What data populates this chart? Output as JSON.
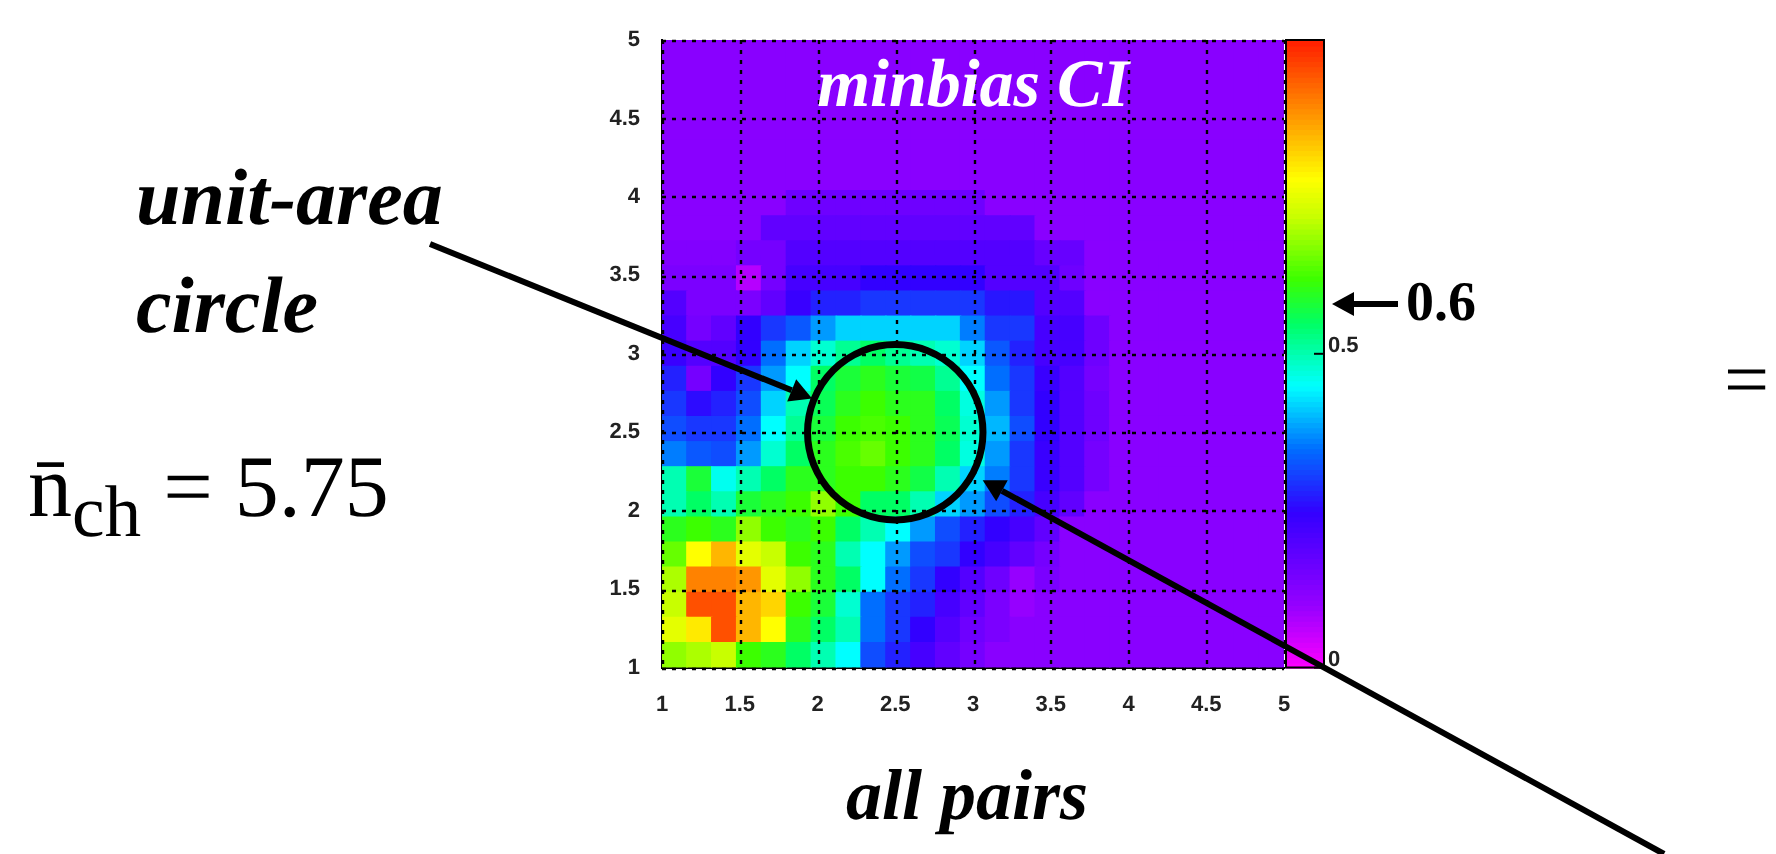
{
  "chart_data": {
    "type": "heatmap",
    "title": "minbias CI",
    "xlabel": "all pairs",
    "annotations": [
      "unit-area circle",
      "0.6",
      "n̄$_{ch}$ = 5.75",
      "="
    ],
    "xlim": [
      1,
      5
    ],
    "ylim": [
      1,
      5
    ],
    "xticks": [
      1,
      1.5,
      2,
      2.5,
      3,
      3.5,
      4,
      4.5,
      5
    ],
    "yticks": [
      1,
      1.5,
      2,
      2.5,
      3,
      3.5,
      4,
      4.5,
      5
    ],
    "clim": [
      0,
      1
    ],
    "cticks": [
      0,
      0.5
    ],
    "grid": true,
    "cells": [
      [
        0.12,
        0.12,
        0.12,
        0.12,
        0.12,
        0.12,
        0.12,
        0.12,
        0.12,
        0.12,
        0.12,
        0.12,
        0.12,
        0.12,
        0.12,
        0.12,
        0.12,
        0.12,
        0.12,
        0.12,
        0.12,
        0.12,
        0.12,
        0.12,
        0.12
      ],
      [
        0.12,
        0.12,
        0.12,
        0.12,
        0.12,
        0.12,
        0.12,
        0.12,
        0.12,
        0.12,
        0.12,
        0.12,
        0.12,
        0.12,
        0.12,
        0.12,
        0.12,
        0.12,
        0.12,
        0.12,
        0.12,
        0.12,
        0.12,
        0.12,
        0.12
      ],
      [
        0.12,
        0.12,
        0.12,
        0.12,
        0.12,
        0.12,
        0.12,
        0.12,
        0.12,
        0.12,
        0.12,
        0.12,
        0.12,
        0.12,
        0.12,
        0.12,
        0.12,
        0.12,
        0.12,
        0.12,
        0.12,
        0.12,
        0.12,
        0.12,
        0.12
      ],
      [
        0.12,
        0.12,
        0.12,
        0.12,
        0.12,
        0.12,
        0.12,
        0.12,
        0.12,
        0.12,
        0.12,
        0.12,
        0.12,
        0.12,
        0.12,
        0.12,
        0.12,
        0.12,
        0.12,
        0.12,
        0.12,
        0.12,
        0.12,
        0.12,
        0.12
      ],
      [
        0.12,
        0.12,
        0.12,
        0.12,
        0.12,
        0.12,
        0.12,
        0.12,
        0.12,
        0.12,
        0.12,
        0.12,
        0.12,
        0.12,
        0.12,
        0.12,
        0.12,
        0.12,
        0.12,
        0.12,
        0.12,
        0.12,
        0.12,
        0.12,
        0.12
      ],
      [
        0.12,
        0.12,
        0.12,
        0.12,
        0.12,
        0.12,
        0.12,
        0.12,
        0.12,
        0.12,
        0.12,
        0.12,
        0.12,
        0.12,
        0.12,
        0.12,
        0.12,
        0.12,
        0.12,
        0.12,
        0.12,
        0.12,
        0.12,
        0.12,
        0.12
      ],
      [
        0.12,
        0.12,
        0.12,
        0.12,
        0.12,
        0.16,
        0.16,
        0.16,
        0.16,
        0.16,
        0.16,
        0.16,
        0.16,
        0.12,
        0.12,
        0.12,
        0.12,
        0.12,
        0.12,
        0.12,
        0.12,
        0.12,
        0.12,
        0.12,
        0.12
      ],
      [
        0.12,
        0.12,
        0.12,
        0.12,
        0.18,
        0.18,
        0.18,
        0.18,
        0.18,
        0.18,
        0.18,
        0.18,
        0.18,
        0.18,
        0.18,
        0.12,
        0.12,
        0.12,
        0.12,
        0.12,
        0.12,
        0.12,
        0.12,
        0.12,
        0.12
      ],
      [
        0.13,
        0.13,
        0.13,
        0.15,
        0.15,
        0.2,
        0.2,
        0.2,
        0.2,
        0.2,
        0.2,
        0.2,
        0.2,
        0.2,
        0.2,
        0.17,
        0.17,
        0.12,
        0.12,
        0.12,
        0.12,
        0.12,
        0.12,
        0.12,
        0.12
      ],
      [
        0.14,
        0.14,
        0.14,
        0.07,
        0.15,
        0.22,
        0.22,
        0.22,
        0.25,
        0.25,
        0.25,
        0.25,
        0.25,
        0.2,
        0.2,
        0.2,
        0.16,
        0.12,
        0.12,
        0.12,
        0.12,
        0.12,
        0.12,
        0.12,
        0.12
      ],
      [
        0.2,
        0.14,
        0.14,
        0.14,
        0.18,
        0.24,
        0.28,
        0.28,
        0.3,
        0.3,
        0.3,
        0.3,
        0.3,
        0.27,
        0.27,
        0.2,
        0.2,
        0.12,
        0.12,
        0.12,
        0.12,
        0.12,
        0.12,
        0.12,
        0.12
      ],
      [
        0.22,
        0.15,
        0.18,
        0.25,
        0.3,
        0.33,
        0.38,
        0.42,
        0.42,
        0.42,
        0.42,
        0.42,
        0.36,
        0.3,
        0.3,
        0.22,
        0.22,
        0.16,
        0.12,
        0.12,
        0.12,
        0.12,
        0.12,
        0.12,
        0.12
      ],
      [
        0.24,
        0.2,
        0.2,
        0.25,
        0.35,
        0.42,
        0.48,
        0.52,
        0.55,
        0.52,
        0.5,
        0.48,
        0.42,
        0.33,
        0.28,
        0.22,
        0.22,
        0.16,
        0.12,
        0.12,
        0.12,
        0.12,
        0.12,
        0.12,
        0.12
      ],
      [
        0.28,
        0.15,
        0.25,
        0.3,
        0.38,
        0.45,
        0.55,
        0.58,
        0.6,
        0.58,
        0.57,
        0.52,
        0.45,
        0.35,
        0.3,
        0.24,
        0.2,
        0.15,
        0.12,
        0.12,
        0.12,
        0.12,
        0.12,
        0.12,
        0.12
      ],
      [
        0.3,
        0.26,
        0.28,
        0.32,
        0.42,
        0.5,
        0.56,
        0.6,
        0.62,
        0.6,
        0.6,
        0.55,
        0.47,
        0.38,
        0.3,
        0.25,
        0.2,
        0.16,
        0.12,
        0.12,
        0.12,
        0.12,
        0.12,
        0.12,
        0.12
      ],
      [
        0.32,
        0.3,
        0.3,
        0.35,
        0.45,
        0.52,
        0.58,
        0.62,
        0.63,
        0.62,
        0.6,
        0.56,
        0.48,
        0.4,
        0.32,
        0.25,
        0.2,
        0.16,
        0.12,
        0.12,
        0.12,
        0.12,
        0.12,
        0.12,
        0.12
      ],
      [
        0.36,
        0.33,
        0.32,
        0.38,
        0.48,
        0.55,
        0.6,
        0.63,
        0.65,
        0.62,
        0.6,
        0.55,
        0.47,
        0.38,
        0.3,
        0.24,
        0.2,
        0.15,
        0.12,
        0.12,
        0.12,
        0.12,
        0.12,
        0.12,
        0.12
      ],
      [
        0.5,
        0.58,
        0.46,
        0.5,
        0.55,
        0.6,
        0.6,
        0.62,
        0.62,
        0.6,
        0.57,
        0.5,
        0.42,
        0.36,
        0.3,
        0.24,
        0.2,
        0.15,
        0.12,
        0.12,
        0.12,
        0.12,
        0.12,
        0.12,
        0.12
      ],
      [
        0.5,
        0.55,
        0.5,
        0.58,
        0.6,
        0.62,
        0.68,
        0.62,
        0.55,
        0.55,
        0.5,
        0.42,
        0.38,
        0.32,
        0.28,
        0.22,
        0.18,
        0.12,
        0.12,
        0.12,
        0.12,
        0.12,
        0.12,
        0.12,
        0.12
      ],
      [
        0.6,
        0.62,
        0.6,
        0.68,
        0.62,
        0.6,
        0.62,
        0.55,
        0.5,
        0.45,
        0.38,
        0.32,
        0.28,
        0.25,
        0.22,
        0.18,
        0.12,
        0.12,
        0.12,
        0.12,
        0.12,
        0.12,
        0.12,
        0.12,
        0.12
      ],
      [
        0.65,
        0.78,
        0.85,
        0.75,
        0.72,
        0.62,
        0.6,
        0.5,
        0.45,
        0.38,
        0.32,
        0.3,
        0.25,
        0.22,
        0.18,
        0.15,
        0.12,
        0.12,
        0.12,
        0.12,
        0.12,
        0.12,
        0.12,
        0.12,
        0.12
      ],
      [
        0.7,
        0.9,
        0.9,
        0.88,
        0.75,
        0.68,
        0.6,
        0.55,
        0.45,
        0.35,
        0.3,
        0.25,
        0.2,
        0.16,
        0.1,
        0.14,
        0.12,
        0.12,
        0.12,
        0.12,
        0.12,
        0.12,
        0.12,
        0.12,
        0.12
      ],
      [
        0.72,
        0.95,
        0.95,
        0.85,
        0.82,
        0.62,
        0.58,
        0.48,
        0.35,
        0.3,
        0.28,
        0.22,
        0.18,
        0.14,
        0.1,
        0.12,
        0.12,
        0.12,
        0.12,
        0.12,
        0.12,
        0.12,
        0.12,
        0.12,
        0.12
      ],
      [
        0.75,
        0.8,
        0.95,
        0.85,
        0.78,
        0.6,
        0.55,
        0.5,
        0.35,
        0.3,
        0.25,
        0.2,
        0.16,
        0.14,
        0.12,
        0.12,
        0.12,
        0.12,
        0.12,
        0.12,
        0.12,
        0.12,
        0.12,
        0.12,
        0.12
      ],
      [
        0.68,
        0.7,
        0.72,
        0.62,
        0.6,
        0.55,
        0.5,
        0.45,
        0.32,
        0.28,
        0.22,
        0.18,
        0.15,
        0.12,
        0.12,
        0.12,
        0.12,
        0.12,
        0.12,
        0.12,
        0.12,
        0.12,
        0.12,
        0.12,
        0.12
      ]
    ]
  }
}
